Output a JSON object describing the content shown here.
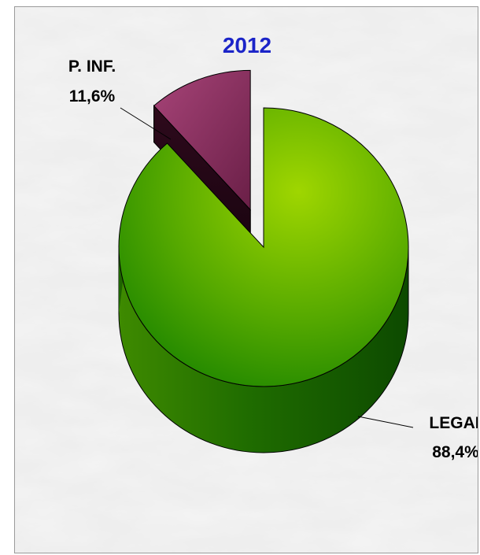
{
  "chart_data": {
    "type": "pie",
    "title": "2012",
    "title_color": "#1b24c8",
    "categories": [
      "LEGAL",
      "P. INF."
    ],
    "values": [
      88.4,
      11.6
    ],
    "value_labels": [
      "88,4%",
      "11,6%"
    ],
    "colors": [
      "#7fc200",
      "#7a2a55"
    ],
    "exploded": [
      "P. INF."
    ],
    "style": "3d",
    "background": "marble"
  }
}
